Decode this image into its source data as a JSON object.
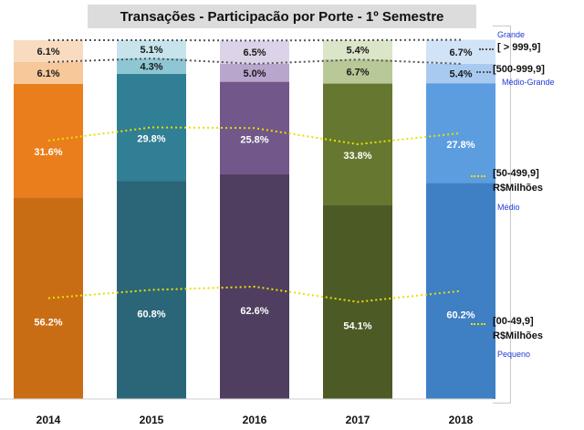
{
  "colors": {
    "y2014": [
      "#c96d14",
      "#ea7e1c",
      "#f6c89a",
      "#f9dcc0"
    ],
    "y2015": [
      "#2b6678",
      "#317f94",
      "#8fc6d4",
      "#c7e4ec"
    ],
    "y2016": [
      "#4f3e60",
      "#72578a",
      "#b8a6cc",
      "#ddd3e8"
    ],
    "y2017": [
      "#4c5a26",
      "#66782f",
      "#b8c896",
      "#dbe5c8"
    ],
    "y2018": [
      "#3f7fc4",
      "#5c9de0",
      "#a9caf0",
      "#d1e3f7"
    ],
    "line_yellow": "#e8e000",
    "line_gray": "#555555",
    "legend_blue": "#1f3bd6"
  },
  "chart_data": {
    "type": "bar",
    "stacked": true,
    "title": "Transações - Participacão por Porte - 1º Semestre",
    "categories": [
      "2014",
      "2015",
      "2016",
      "2017",
      "2018"
    ],
    "ylim": [
      0,
      100
    ],
    "series": [
      {
        "name": "[00-49,9] R$Milhões Pequeno",
        "values": [
          56.2,
          60.8,
          62.6,
          54.1,
          60.2
        ],
        "labels": [
          "56.2%",
          "60.8%",
          "62.6%",
          "54.1%",
          "60.2%"
        ]
      },
      {
        "name": "[50-499,9] R$Milhões Médio",
        "values": [
          31.6,
          29.8,
          25.8,
          33.8,
          27.8
        ],
        "labels": [
          "31.6%",
          "29.8%",
          "25.8%",
          "33.8%",
          "27.8%"
        ]
      },
      {
        "name": "[500-999,9] Médio-Grande",
        "values": [
          6.1,
          4.3,
          5.0,
          6.7,
          5.4
        ],
        "labels": [
          "6.1%",
          "4.3%",
          "5.0%",
          "6.7%",
          "5.4%"
        ]
      },
      {
        "name": "[ > 999,9] Grande",
        "values": [
          6.1,
          5.1,
          6.5,
          5.4,
          6.7
        ],
        "labels": [
          "6.1%",
          "5.1%",
          "6.5%",
          "5.4%",
          "6.7%"
        ]
      }
    ],
    "legend": {
      "placement": "right",
      "grande_size": "Grande",
      "grande_band": "[ > 999,9]",
      "medgrande_band": "[500-999,9]",
      "medgrande_size": "Médio-Grande",
      "medio_band": "[50-499,9]",
      "medio_unit": "R$Milhões",
      "medio_size": "Médio",
      "pequeno_band": "[00-49,9]",
      "pequeno_unit": "R$Milhões",
      "pequeno_size": "Pequeno"
    }
  }
}
